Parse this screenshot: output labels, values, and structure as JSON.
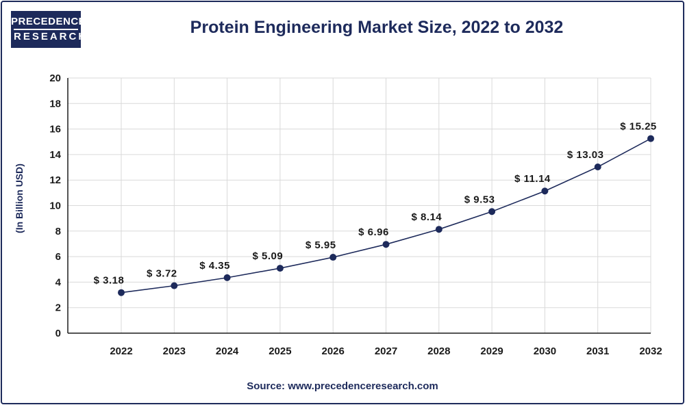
{
  "logo": {
    "line1": "PRECEDENCE",
    "line2": "RESEARCH"
  },
  "source": "Source: www.precedenceresearch.com",
  "colors": {
    "line": "#1d2a5b",
    "grid": "#d9d9d9",
    "axis": "#1a1a1a",
    "title": "#1d2a5b"
  },
  "chart_data": {
    "type": "line",
    "title": "Protein Engineering Market Size, 2022 to 2032",
    "xlabel": "",
    "ylabel": "(In Billion USD)",
    "categories": [
      "2022",
      "2023",
      "2024",
      "2025",
      "2026",
      "2027",
      "2028",
      "2029",
      "2030",
      "2031",
      "2032"
    ],
    "series": [
      {
        "values": [
          3.18,
          3.72,
          4.35,
          5.09,
          5.95,
          6.96,
          8.14,
          9.53,
          11.14,
          13.03,
          15.25
        ],
        "labels": [
          "$ 3.18",
          "$ 3.72",
          "$ 4.35",
          "$ 5.09",
          "$ 5.95",
          "$ 6.96",
          "$ 8.14",
          "$ 9.53",
          "$ 11.14",
          "$ 13.03",
          "$ 15.25"
        ]
      }
    ],
    "ylim": [
      0,
      20
    ],
    "yticks": [
      "0",
      "2",
      "4",
      "6",
      "8",
      "10",
      "12",
      "14",
      "16",
      "18",
      "20"
    ],
    "grid": true,
    "legend": "none"
  }
}
